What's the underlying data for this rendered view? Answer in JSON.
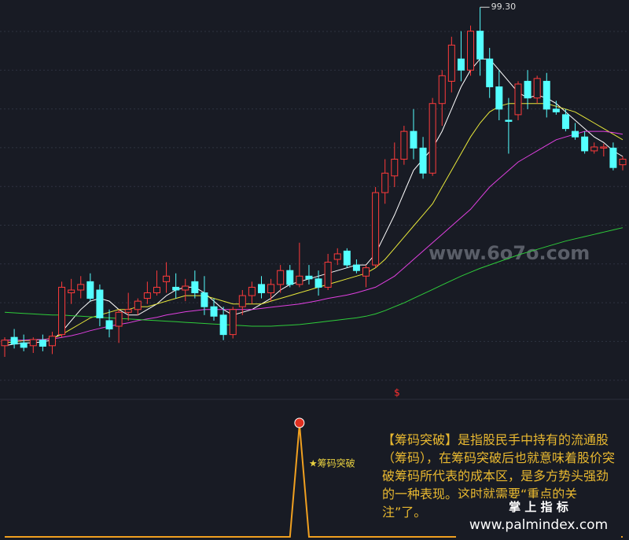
{
  "chart_data": {
    "type": "candlestick",
    "ylim": [
      30,
      100.6
    ],
    "grid": true,
    "up_color": "#ff3b3b",
    "down_color": "#54ffff",
    "peak_label": {
      "value": 99.3,
      "label": "99.30"
    },
    "ohlc": [
      [
        38.5,
        40,
        36.5,
        39.5
      ],
      [
        40,
        41.5,
        38,
        38.8
      ],
      [
        39,
        40.5,
        37.5,
        38.2
      ],
      [
        38.5,
        40,
        37.2,
        39.6
      ],
      [
        39.5,
        40.5,
        37.5,
        38.4
      ],
      [
        38.5,
        41,
        37,
        40.2
      ],
      [
        40.5,
        50,
        40,
        49
      ],
      [
        48,
        50.5,
        46,
        48.5
      ],
      [
        48.5,
        51,
        47,
        49.5
      ],
      [
        50,
        51.5,
        46.5,
        47
      ],
      [
        48.5,
        49.5,
        42,
        43.5
      ],
      [
        43,
        45,
        40,
        41.5
      ],
      [
        42,
        45,
        39,
        44.5
      ],
      [
        44.5,
        48,
        43,
        45
      ],
      [
        45,
        47,
        44,
        46.5
      ],
      [
        47,
        50,
        46,
        48
      ],
      [
        48,
        52,
        47.5,
        49
      ],
      [
        50,
        53.5,
        48,
        51
      ],
      [
        49,
        51.5,
        47,
        48.5
      ],
      [
        48.5,
        50.5,
        46.5,
        49.2
      ],
      [
        50,
        52,
        47,
        48
      ],
      [
        48,
        51,
        44,
        45.5
      ],
      [
        45.5,
        47,
        43,
        43.8
      ],
      [
        44,
        45.5,
        39.5,
        40.5
      ],
      [
        40.5,
        45.5,
        39.8,
        45
      ],
      [
        45.5,
        48.5,
        44,
        47.5
      ],
      [
        47.5,
        50,
        46,
        49
      ],
      [
        49.5,
        51,
        47,
        48
      ],
      [
        48,
        50.5,
        46.5,
        49.5
      ],
      [
        49.5,
        53,
        48,
        52
      ],
      [
        52,
        53,
        49,
        49.5
      ],
      [
        49.5,
        57,
        49,
        51
      ],
      [
        51,
        53,
        49.5,
        50.5
      ],
      [
        50.5,
        52,
        47.5,
        49
      ],
      [
        49,
        55,
        48.5,
        53.5
      ],
      [
        54,
        56,
        53,
        55
      ],
      [
        55.5,
        56,
        52.5,
        53
      ],
      [
        53,
        54,
        51.5,
        52
      ],
      [
        51,
        53,
        49,
        52.5
      ],
      [
        53,
        67,
        52.5,
        66
      ],
      [
        66,
        72,
        64,
        69.5
      ],
      [
        69,
        75,
        67,
        72
      ],
      [
        72,
        78,
        71,
        77
      ],
      [
        77,
        81,
        72,
        74
      ],
      [
        74,
        76,
        68.5,
        69.5
      ],
      [
        69.5,
        83,
        69,
        82
      ],
      [
        82,
        88,
        78,
        87
      ],
      [
        86,
        94,
        84,
        92.5
      ],
      [
        90,
        95,
        86,
        88
      ],
      [
        88,
        96,
        87,
        95
      ],
      [
        95,
        99.3,
        87,
        90
      ],
      [
        90,
        92,
        83,
        85
      ],
      [
        85,
        88,
        79,
        81
      ],
      [
        79,
        83,
        73,
        78.8
      ],
      [
        80,
        86,
        79,
        85.5
      ],
      [
        86,
        88,
        81,
        83
      ],
      [
        83,
        87,
        82,
        86.5
      ],
      [
        86,
        87.5,
        79.5,
        81
      ],
      [
        81,
        82.5,
        80,
        80.5
      ],
      [
        80,
        81,
        77,
        77.5
      ],
      [
        77,
        78.5,
        75.5,
        76
      ],
      [
        76,
        77,
        73,
        73.5
      ],
      [
        73.5,
        75,
        73,
        74.2
      ],
      [
        74,
        74.8,
        72.5,
        74.2
      ],
      [
        74,
        75,
        70,
        70.5
      ],
      [
        71,
        72.5,
        70,
        72
      ]
    ],
    "series": [
      {
        "color": "#ffffff",
        "values": [
          38.5,
          38.8,
          39,
          39,
          39.2,
          39.5,
          41,
          43,
          45,
          46.5,
          47,
          46.5,
          45,
          44,
          44,
          45,
          46,
          47.5,
          48.5,
          49,
          49,
          48,
          46.5,
          45,
          44,
          44.5,
          45,
          46,
          47,
          48.5,
          49.5,
          50,
          50.5,
          51,
          51.5,
          52,
          52.5,
          53,
          53,
          55,
          58.5,
          62,
          66,
          70,
          72,
          74,
          77,
          81,
          85,
          88,
          90,
          90,
          88,
          86,
          84,
          83,
          83.5,
          83,
          82,
          80.5,
          79,
          77.5,
          76,
          75,
          73.5,
          72.5
        ]
      },
      {
        "color": "#e8e83a",
        "values": [
          39,
          39.2,
          39.4,
          39.5,
          39.6,
          39.8,
          40.5,
          41.5,
          42.5,
          43.5,
          44,
          44.5,
          45,
          45,
          45.5,
          45.5,
          46,
          46.5,
          47,
          47.5,
          47.5,
          47.5,
          47,
          46.5,
          46,
          46,
          46,
          46,
          46.5,
          47,
          47.5,
          48,
          48.5,
          49,
          49.5,
          50,
          50.5,
          51,
          51.5,
          52.5,
          54,
          56,
          58,
          60,
          62,
          64,
          67,
          70,
          73,
          76,
          78.5,
          80.5,
          81.5,
          82,
          82,
          82,
          82,
          82,
          81.5,
          81,
          80.5,
          79.5,
          78.5,
          77.5,
          76.5,
          75.5
        ]
      },
      {
        "color": "#e040e0",
        "values": [
          39.5,
          39.5,
          39.5,
          39.6,
          39.6,
          39.7,
          40,
          40.3,
          40.7,
          41.2,
          41.6,
          42,
          42.3,
          42.6,
          43,
          43.3,
          43.6,
          44,
          44.3,
          44.6,
          44.8,
          45,
          45,
          45,
          45,
          45,
          45,
          45.2,
          45.4,
          45.6,
          45.8,
          46,
          46.3,
          46.6,
          47,
          47.3,
          47.6,
          48,
          48.5,
          49,
          50,
          51,
          52.5,
          54,
          55.5,
          57,
          58.5,
          60,
          61.5,
          63,
          65,
          67,
          68.5,
          70,
          71.5,
          72.5,
          73.5,
          74.5,
          75.5,
          76,
          76.5,
          77,
          77,
          77,
          76.8,
          76.5
        ]
      },
      {
        "color": "#2ecc3a",
        "values": [
          44.5,
          44.4,
          44.3,
          44.2,
          44.1,
          44,
          44,
          43.9,
          43.8,
          43.7,
          43.6,
          43.5,
          43.4,
          43.3,
          43.2,
          43.1,
          43,
          42.9,
          42.8,
          42.7,
          42.6,
          42.5,
          42.4,
          42.3,
          42.2,
          42.1,
          42,
          42,
          42,
          42.1,
          42.2,
          42.3,
          42.5,
          42.7,
          42.9,
          43.1,
          43.3,
          43.5,
          43.8,
          44.2,
          44.8,
          45.5,
          46.2,
          47,
          47.8,
          48.6,
          49.4,
          50.2,
          51,
          51.7,
          52.4,
          53,
          53.6,
          54.2,
          54.8,
          55.3,
          55.8,
          56.3,
          56.8,
          57.3,
          57.7,
          58.1,
          58.5,
          58.9,
          59.3,
          59.7
        ]
      }
    ],
    "indicator": {
      "type": "line",
      "color": "#f0a020",
      "ylim": [
        0,
        1
      ],
      "label": "★筹码突破",
      "marker": "$",
      "values": [
        0,
        0,
        0,
        0,
        0,
        0,
        0,
        0,
        0,
        0,
        0,
        0,
        0,
        0,
        0,
        0,
        0,
        0,
        0,
        0,
        0,
        0,
        0,
        0,
        0,
        0,
        0,
        0,
        0,
        0,
        0,
        1,
        0,
        0,
        0,
        0,
        0,
        0,
        0,
        0,
        0,
        0,
        0,
        0,
        0,
        0,
        0,
        0,
        0,
        0,
        0,
        0,
        0,
        0,
        0,
        0,
        0,
        0,
        0,
        0,
        0,
        0,
        0,
        0,
        0,
        0
      ]
    }
  },
  "description": "【筹码突破】是指股民手中持有的流通股（筹码），在筹码突破后也就意味着股价突破筹码所代表的成本区，是多方势头强劲的一种表现。这时就需要“重点的关注”了。",
  "watermark": "www.6o7o.com",
  "brand": "掌 上 指 标",
  "url": "www.palmindex.com"
}
